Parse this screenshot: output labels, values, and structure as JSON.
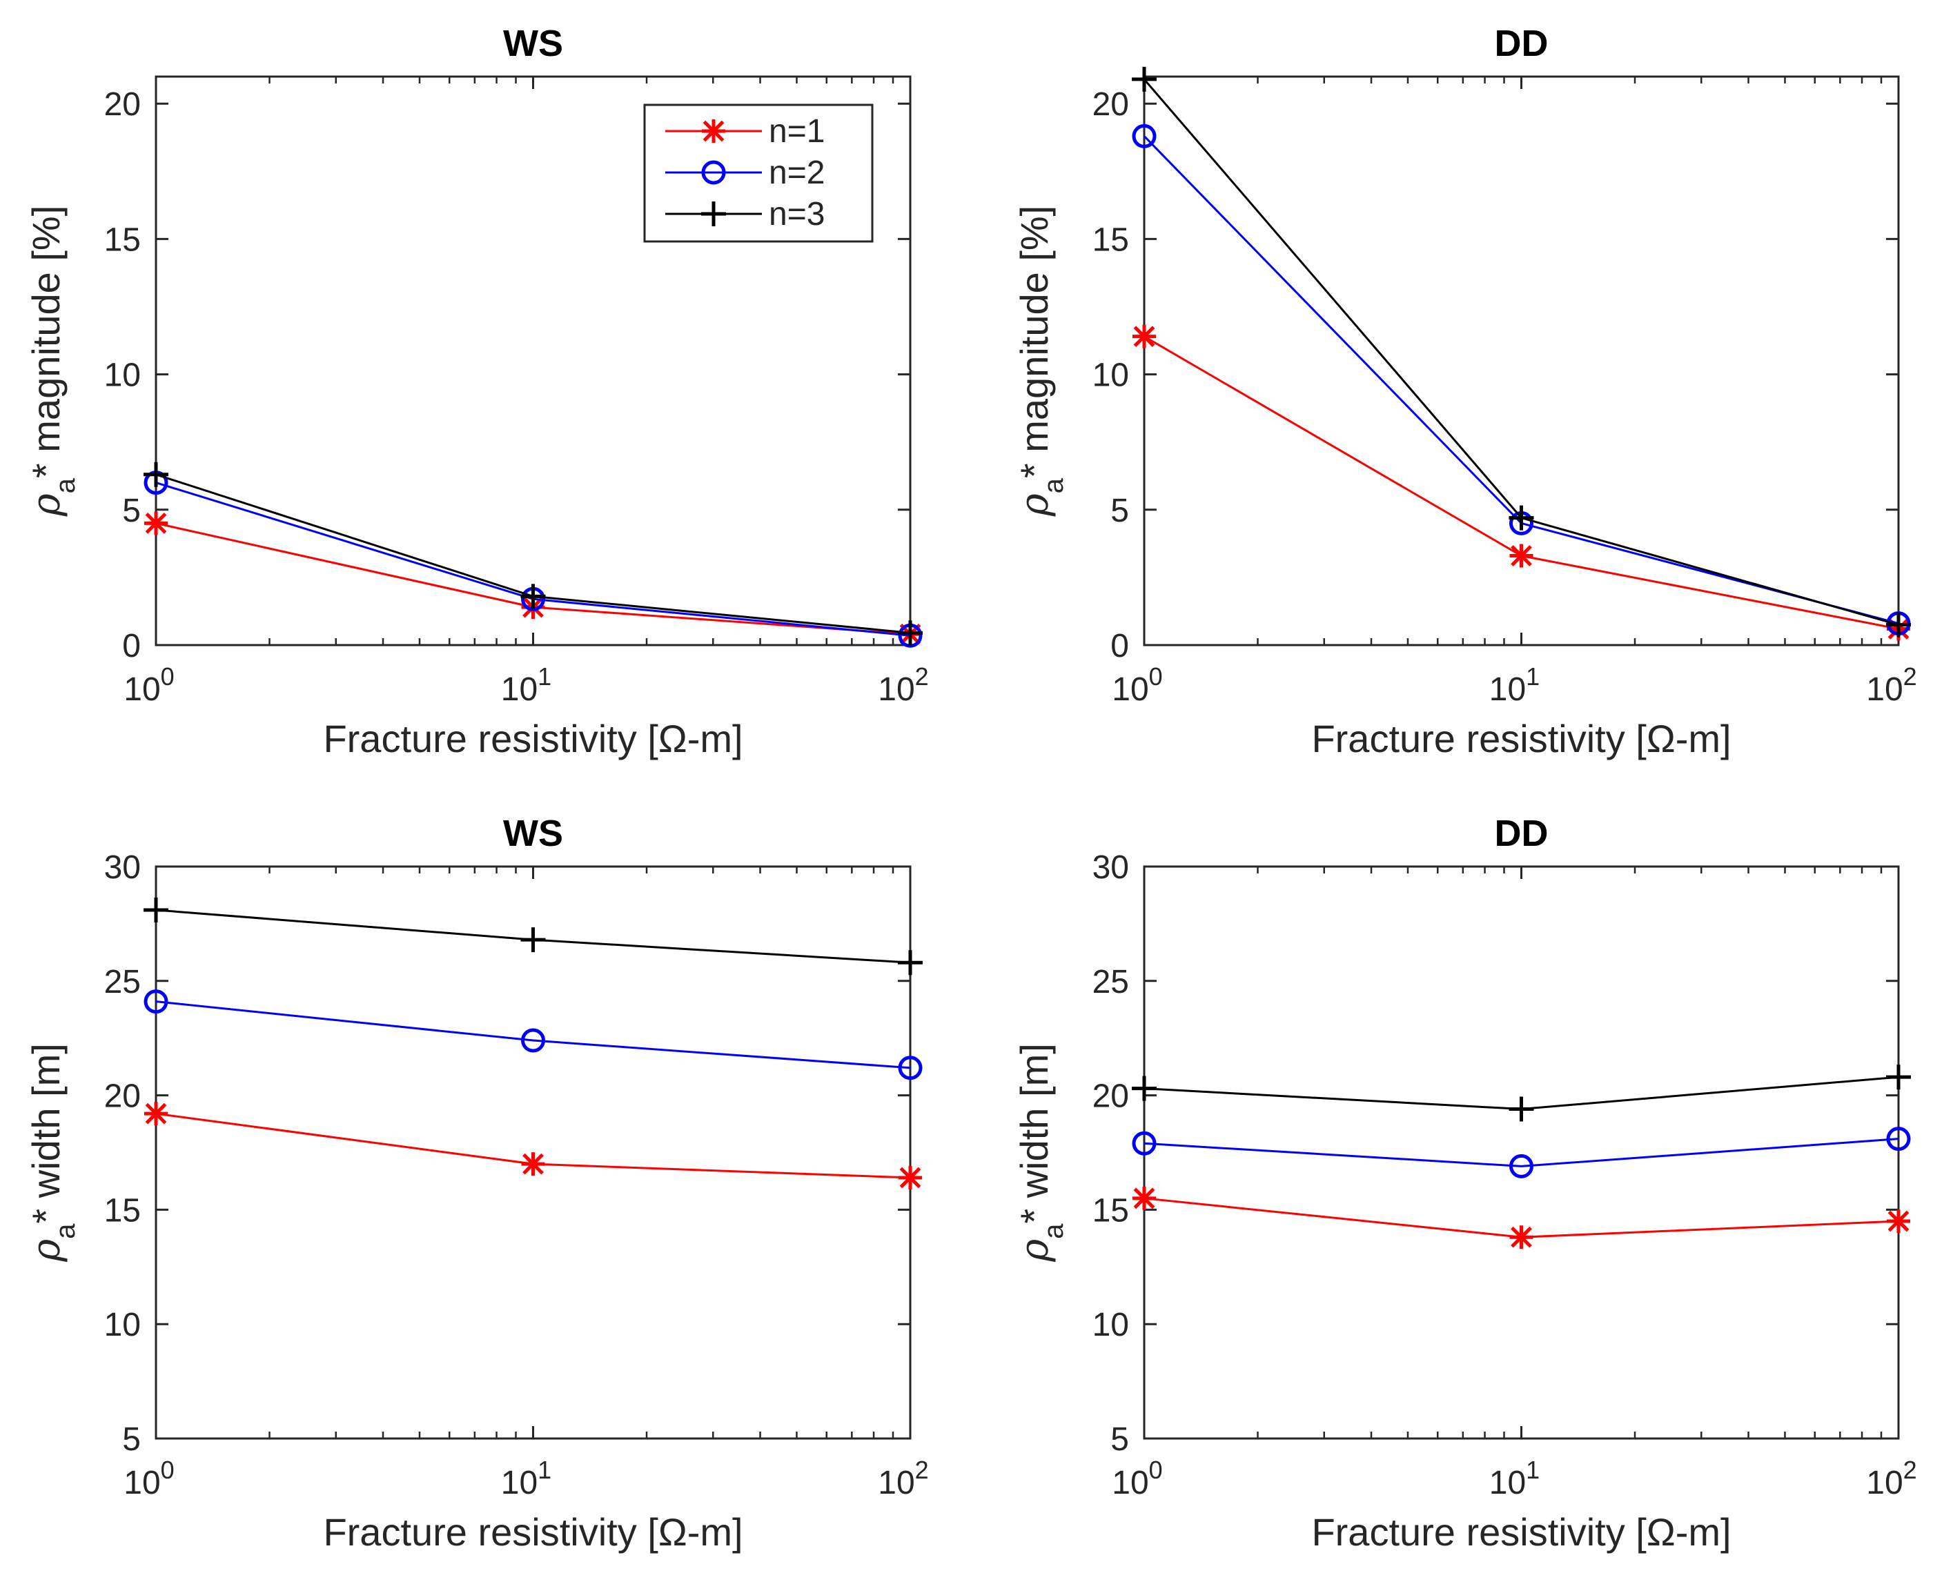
{
  "panels": [
    {
      "title": "WS",
      "ylabel": {
        "rho": "ρ",
        "sub": "a",
        "rest": "* magnitude [%]"
      },
      "xlabel": "Fracture resistivity [Ω-m]",
      "ylim": [
        0,
        21
      ],
      "yticks": [
        "0",
        "5",
        "10",
        "15",
        "20"
      ],
      "show_legend": true
    },
    {
      "title": "DD",
      "ylabel": {
        "rho": "ρ",
        "sub": "a",
        "rest": "* magnitude [%]"
      },
      "xlabel": "Fracture resistivity [Ω-m]",
      "ylim": [
        0,
        21
      ],
      "yticks": [
        "0",
        "5",
        "10",
        "15",
        "20"
      ],
      "show_legend": false
    },
    {
      "title": "WS",
      "ylabel": {
        "rho": "ρ",
        "sub": "a",
        "rest": "* width [m]"
      },
      "xlabel": "Fracture resistivity [Ω-m]",
      "ylim": [
        5,
        30
      ],
      "yticks": [
        "5",
        "10",
        "15",
        "20",
        "25",
        "30"
      ],
      "show_legend": false
    },
    {
      "title": "DD",
      "ylabel": {
        "rho": "ρ",
        "sub": "a",
        "rest": "* width [m]"
      },
      "xlabel": "Fracture resistivity [Ω-m]",
      "ylim": [
        5,
        30
      ],
      "yticks": [
        "5",
        "10",
        "15",
        "20",
        "25",
        "30"
      ],
      "show_legend": false
    }
  ],
  "xticks": [
    {
      "base": "10",
      "exp": "0"
    },
    {
      "base": "10",
      "exp": "1"
    },
    {
      "base": "10",
      "exp": "2"
    }
  ],
  "legend": [
    "n=1",
    "n=2",
    "n=3"
  ],
  "series_style": [
    {
      "name": "n=1",
      "color": "#ff0000",
      "marker": "asterisk"
    },
    {
      "name": "n=2",
      "color": "#0000ff",
      "marker": "circle"
    },
    {
      "name": "n=3",
      "color": "#000000",
      "marker": "plus"
    }
  ],
  "chart_data": [
    {
      "type": "line",
      "title": "WS",
      "xscale": "log",
      "x": [
        1,
        10,
        100
      ],
      "xlim": [
        1,
        100
      ],
      "ylim": [
        0,
        21
      ],
      "xlabel": "Fracture resistivity [Ω-m]",
      "ylabel": "ρa* magnitude [%]",
      "legend_position": "top-right",
      "series": [
        {
          "name": "n=1",
          "values": [
            4.5,
            1.4,
            0.4
          ]
        },
        {
          "name": "n=2",
          "values": [
            6.0,
            1.7,
            0.35
          ]
        },
        {
          "name": "n=3",
          "values": [
            6.3,
            1.8,
            0.45
          ]
        }
      ]
    },
    {
      "type": "line",
      "title": "DD",
      "xscale": "log",
      "x": [
        1,
        10,
        100
      ],
      "xlim": [
        1,
        100
      ],
      "ylim": [
        0,
        21
      ],
      "xlabel": "Fracture resistivity [Ω-m]",
      "ylabel": "ρa* magnitude [%]",
      "series": [
        {
          "name": "n=1",
          "values": [
            11.4,
            3.3,
            0.6
          ]
        },
        {
          "name": "n=2",
          "values": [
            18.8,
            4.5,
            0.8
          ]
        },
        {
          "name": "n=3",
          "values": [
            20.9,
            4.7,
            0.75
          ]
        }
      ]
    },
    {
      "type": "line",
      "title": "WS",
      "xscale": "log",
      "x": [
        1,
        10,
        100
      ],
      "xlim": [
        1,
        100
      ],
      "ylim": [
        5,
        30
      ],
      "xlabel": "Fracture resistivity [Ω-m]",
      "ylabel": "ρa* width [m]",
      "series": [
        {
          "name": "n=1",
          "values": [
            19.2,
            17.0,
            16.4
          ]
        },
        {
          "name": "n=2",
          "values": [
            24.1,
            22.4,
            21.2
          ]
        },
        {
          "name": "n=3",
          "values": [
            28.1,
            26.8,
            25.8
          ]
        }
      ]
    },
    {
      "type": "line",
      "title": "DD",
      "xscale": "log",
      "x": [
        1,
        10,
        100
      ],
      "xlim": [
        1,
        100
      ],
      "ylim": [
        5,
        30
      ],
      "xlabel": "Fracture resistivity [Ω-m]",
      "ylabel": "ρa* width [m]",
      "series": [
        {
          "name": "n=1",
          "values": [
            15.5,
            13.8,
            14.5
          ]
        },
        {
          "name": "n=2",
          "values": [
            17.9,
            16.9,
            18.1
          ]
        },
        {
          "name": "n=3",
          "values": [
            20.3,
            19.4,
            20.8
          ]
        }
      ]
    }
  ]
}
